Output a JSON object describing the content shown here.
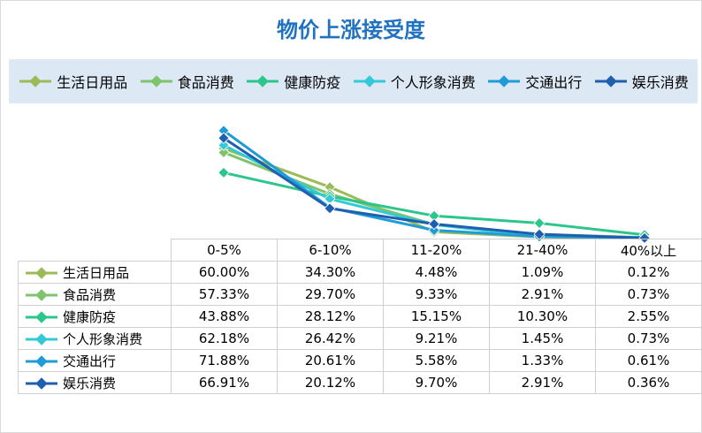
{
  "chart_data": {
    "type": "line",
    "title": "物价上涨接受度",
    "categories": [
      "0-5%",
      "6-10%",
      "11-20%",
      "21-40%",
      "40%以上"
    ],
    "ylim": [
      0,
      80
    ],
    "grid": false,
    "legend_position": "top",
    "data_table": true,
    "series": [
      {
        "name": "生活日用品",
        "color": "#9bbb59",
        "values": [
          "60.00%",
          "34.30%",
          "4.48%",
          "1.09%",
          "0.12%"
        ],
        "y": [
          60.0,
          34.3,
          4.48,
          1.09,
          0.12
        ]
      },
      {
        "name": "食品消费",
        "color": "#7dc46a",
        "values": [
          "57.33%",
          "29.70%",
          "9.33%",
          "2.91%",
          "0.73%"
        ],
        "y": [
          57.33,
          29.7,
          9.33,
          2.91,
          0.73
        ]
      },
      {
        "name": "健康防疫",
        "color": "#2cc68c",
        "values": [
          "43.88%",
          "28.12%",
          "15.15%",
          "10.30%",
          "2.55%"
        ],
        "y": [
          43.88,
          28.12,
          15.15,
          10.3,
          2.55
        ]
      },
      {
        "name": "个人形象消费",
        "color": "#33c9d6",
        "values": [
          "62.18%",
          "26.42%",
          "9.21%",
          "1.45%",
          "0.73%"
        ],
        "y": [
          62.18,
          26.42,
          9.21,
          1.45,
          0.73
        ]
      },
      {
        "name": "交通出行",
        "color": "#1f9bd7",
        "values": [
          "71.88%",
          "20.61%",
          "5.58%",
          "1.33%",
          "0.61%"
        ],
        "y": [
          71.88,
          20.61,
          5.58,
          1.33,
          0.61
        ]
      },
      {
        "name": "娱乐消费",
        "color": "#1f5fb0",
        "values": [
          "66.91%",
          "20.12%",
          "9.70%",
          "2.91%",
          "0.36%"
        ],
        "y": [
          66.91,
          20.12,
          9.7,
          2.91,
          0.36
        ]
      }
    ]
  }
}
